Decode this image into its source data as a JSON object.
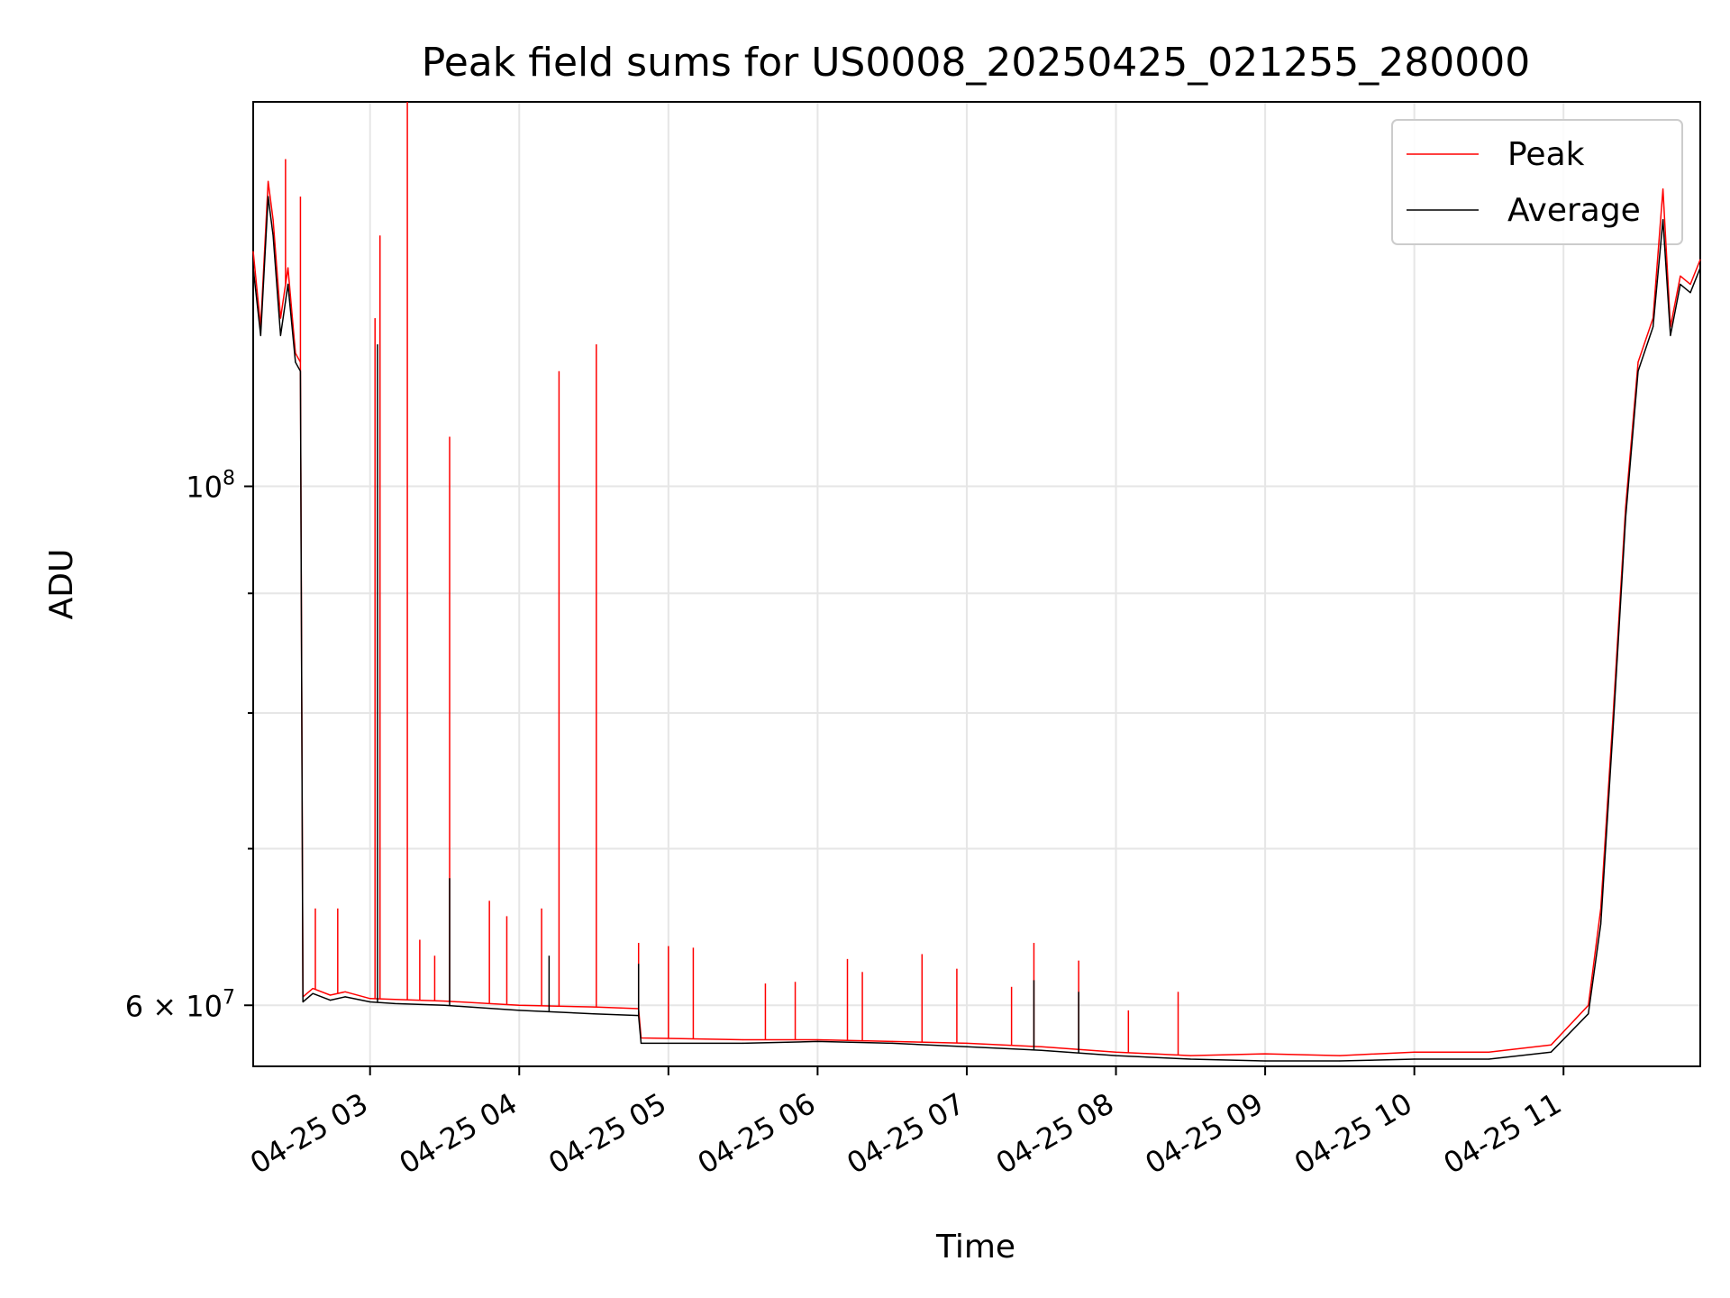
{
  "chart_data": {
    "type": "line",
    "title": "Peak field sums for US0008_20250425_021255_280000",
    "xlabel": "Time",
    "ylabel": "ADU",
    "y_scale": "log",
    "xlim": [
      "2025-04-25 02:13",
      "2025-04-25 11:55"
    ],
    "ylim": [
      56500000,
      146000000
    ],
    "x_ticks": [
      "04-25 03",
      "04-25 04",
      "04-25 05",
      "04-25 06",
      "04-25 07",
      "04-25 08",
      "04-25 09",
      "04-25 10",
      "04-25 11"
    ],
    "y_major_ticks": [
      {
        "value": 100000000,
        "base": "10",
        "exp": "8"
      },
      {
        "value": 60000000,
        "mant": "6",
        "base": "10",
        "exp": "7"
      }
    ],
    "y_minor_ticks": [
      70000000,
      80000000,
      90000000
    ],
    "grid": true,
    "legend_placement": "top-right",
    "series": [
      {
        "name": "Peak",
        "color": "#ff0000",
        "points": [
          [
            "2025-04-25 02:13",
            126000000
          ],
          [
            "2025-04-25 02:16",
            117000000
          ],
          [
            "2025-04-25 02:19",
            135000000
          ],
          [
            "2025-04-25 02:21",
            130000000
          ],
          [
            "2025-04-25 02:24",
            118000000
          ],
          [
            "2025-04-25 02:27",
            124000000
          ],
          [
            "2025-04-25 02:30",
            114000000
          ],
          [
            "2025-04-25 02:32",
            113000000
          ],
          [
            "2025-04-25 02:33",
            60500000
          ],
          [
            "2025-04-25 02:37",
            61000000
          ],
          [
            "2025-04-25 02:44",
            60600000
          ],
          [
            "2025-04-25 02:50",
            60800000
          ],
          [
            "2025-04-25 03:00",
            60400000
          ],
          [
            "2025-04-25 03:10",
            60350000
          ],
          [
            "2025-04-25 03:30",
            60250000
          ],
          [
            "2025-04-25 04:00",
            60000000
          ],
          [
            "2025-04-25 04:30",
            59900000
          ],
          [
            "2025-04-25 04:48",
            59800000
          ],
          [
            "2025-04-25 04:49",
            58100000
          ],
          [
            "2025-04-25 05:30",
            58000000
          ],
          [
            "2025-04-25 06:00",
            58000000
          ],
          [
            "2025-04-25 06:30",
            57900000
          ],
          [
            "2025-04-25 07:00",
            57800000
          ],
          [
            "2025-04-25 07:30",
            57600000
          ],
          [
            "2025-04-25 08:00",
            57300000
          ],
          [
            "2025-04-25 08:30",
            57100000
          ],
          [
            "2025-04-25 09:00",
            57200000
          ],
          [
            "2025-04-25 09:30",
            57100000
          ],
          [
            "2025-04-25 10:00",
            57300000
          ],
          [
            "2025-04-25 10:30",
            57300000
          ],
          [
            "2025-04-25 10:55",
            57700000
          ],
          [
            "2025-04-25 11:10",
            60000000
          ],
          [
            "2025-04-25 11:15",
            66000000
          ],
          [
            "2025-04-25 11:20",
            80000000
          ],
          [
            "2025-04-25 11:25",
            98000000
          ],
          [
            "2025-04-25 11:30",
            113000000
          ],
          [
            "2025-04-25 11:36",
            118000000
          ],
          [
            "2025-04-25 11:40",
            134000000
          ],
          [
            "2025-04-25 11:43",
            117000000
          ],
          [
            "2025-04-25 11:47",
            123000000
          ],
          [
            "2025-04-25 11:51",
            122000000
          ],
          [
            "2025-04-25 11:55",
            125000000
          ]
        ],
        "spikes": [
          [
            "2025-04-25 02:26",
            138000000
          ],
          [
            "2025-04-25 02:32",
            133000000
          ],
          [
            "2025-04-25 02:38",
            66000000
          ],
          [
            "2025-04-25 02:47",
            66000000
          ],
          [
            "2025-04-25 03:02",
            118000000
          ],
          [
            "2025-04-25 03:04",
            128000000
          ],
          [
            "2025-04-25 03:15",
            146000000
          ],
          [
            "2025-04-25 03:20",
            64000000
          ],
          [
            "2025-04-25 03:26",
            63000000
          ],
          [
            "2025-04-25 03:32",
            105000000
          ],
          [
            "2025-04-25 03:48",
            66500000
          ],
          [
            "2025-04-25 03:55",
            65500000
          ],
          [
            "2025-04-25 04:09",
            66000000
          ],
          [
            "2025-04-25 04:16",
            112000000
          ],
          [
            "2025-04-25 04:31",
            115000000
          ],
          [
            "2025-04-25 04:48",
            63800000
          ],
          [
            "2025-04-25 05:00",
            63600000
          ],
          [
            "2025-04-25 05:10",
            63500000
          ],
          [
            "2025-04-25 05:39",
            61300000
          ],
          [
            "2025-04-25 05:51",
            61400000
          ],
          [
            "2025-04-25 06:12",
            62800000
          ],
          [
            "2025-04-25 06:18",
            62000000
          ],
          [
            "2025-04-25 06:42",
            63100000
          ],
          [
            "2025-04-25 06:56",
            62200000
          ],
          [
            "2025-04-25 07:18",
            61100000
          ],
          [
            "2025-04-25 07:27",
            63800000
          ],
          [
            "2025-04-25 07:45",
            62700000
          ],
          [
            "2025-04-25 08:05",
            59700000
          ],
          [
            "2025-04-25 08:25",
            60800000
          ]
        ]
      },
      {
        "name": "Average",
        "color": "#000000",
        "points": [
          [
            "2025-04-25 02:13",
            124000000
          ],
          [
            "2025-04-25 02:16",
            116000000
          ],
          [
            "2025-04-25 02:19",
            133000000
          ],
          [
            "2025-04-25 02:21",
            128000000
          ],
          [
            "2025-04-25 02:24",
            116000000
          ],
          [
            "2025-04-25 02:27",
            122000000
          ],
          [
            "2025-04-25 02:30",
            113000000
          ],
          [
            "2025-04-25 02:32",
            112000000
          ],
          [
            "2025-04-25 02:33",
            60200000
          ],
          [
            "2025-04-25 02:37",
            60700000
          ],
          [
            "2025-04-25 02:44",
            60300000
          ],
          [
            "2025-04-25 02:50",
            60500000
          ],
          [
            "2025-04-25 03:00",
            60200000
          ],
          [
            "2025-04-25 03:10",
            60100000
          ],
          [
            "2025-04-25 03:30",
            60000000
          ],
          [
            "2025-04-25 04:00",
            59700000
          ],
          [
            "2025-04-25 04:30",
            59500000
          ],
          [
            "2025-04-25 04:48",
            59400000
          ],
          [
            "2025-04-25 04:49",
            57800000
          ],
          [
            "2025-04-25 05:30",
            57800000
          ],
          [
            "2025-04-25 06:00",
            57900000
          ],
          [
            "2025-04-25 06:30",
            57800000
          ],
          [
            "2025-04-25 07:00",
            57600000
          ],
          [
            "2025-04-25 07:30",
            57400000
          ],
          [
            "2025-04-25 08:00",
            57100000
          ],
          [
            "2025-04-25 08:30",
            56900000
          ],
          [
            "2025-04-25 09:00",
            56800000
          ],
          [
            "2025-04-25 09:30",
            56800000
          ],
          [
            "2025-04-25 10:00",
            56900000
          ],
          [
            "2025-04-25 10:30",
            56900000
          ],
          [
            "2025-04-25 10:55",
            57300000
          ],
          [
            "2025-04-25 11:10",
            59500000
          ],
          [
            "2025-04-25 11:15",
            65000000
          ],
          [
            "2025-04-25 11:20",
            79000000
          ],
          [
            "2025-04-25 11:25",
            97000000
          ],
          [
            "2025-04-25 11:30",
            112000000
          ],
          [
            "2025-04-25 11:36",
            117000000
          ],
          [
            "2025-04-25 11:40",
            130000000
          ],
          [
            "2025-04-25 11:43",
            116000000
          ],
          [
            "2025-04-25 11:47",
            122000000
          ],
          [
            "2025-04-25 11:51",
            121000000
          ],
          [
            "2025-04-25 11:55",
            124000000
          ]
        ],
        "spikes": [
          [
            "2025-04-25 03:03",
            115000000
          ],
          [
            "2025-04-25 03:32",
            68000000
          ],
          [
            "2025-04-25 04:12",
            63000000
          ],
          [
            "2025-04-25 04:48",
            62500000
          ],
          [
            "2025-04-25 07:27",
            61500000
          ],
          [
            "2025-04-25 07:45",
            60800000
          ]
        ]
      }
    ]
  }
}
